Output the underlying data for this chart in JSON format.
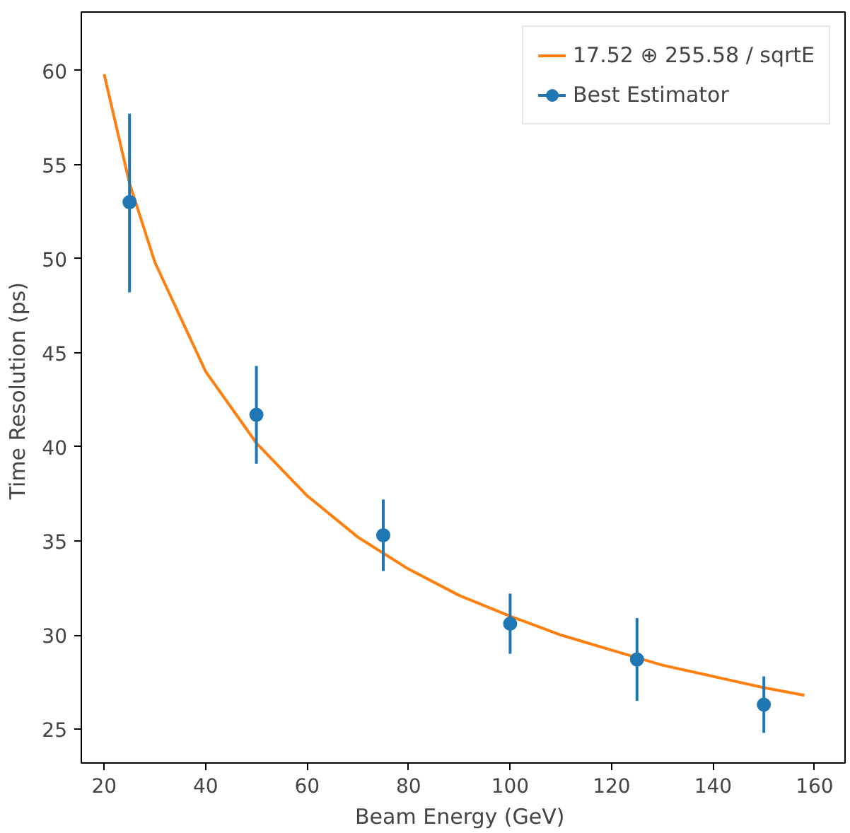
{
  "chart_data": {
    "type": "scatter",
    "xlabel": "Beam Energy  (GeV)",
    "ylabel": "Time Resolution  (ps)",
    "xlim": [
      15.5,
      166
    ],
    "ylim": [
      23.2,
      63.1
    ],
    "xticks": [
      20,
      40,
      60,
      80,
      100,
      120,
      140,
      160
    ],
    "yticks": [
      25,
      30,
      35,
      40,
      45,
      50,
      55,
      60
    ],
    "grid": false,
    "legend": "top right",
    "series": [
      {
        "name": "17.52 ⊕ 255.58 / sqrtE",
        "type": "line",
        "color": "#ff7f0e",
        "line_style": "solid",
        "x": [
          20,
          25,
          30,
          40,
          50,
          60,
          70,
          80,
          90,
          100,
          110,
          120,
          130,
          140,
          150,
          158
        ],
        "values": [
          59.8,
          54.0,
          49.8,
          44.0,
          40.2,
          37.4,
          35.2,
          33.5,
          32.1,
          31.0,
          30.0,
          29.2,
          28.4,
          27.8,
          27.2,
          26.8
        ]
      },
      {
        "name": "Best Estimator",
        "color": "#1f77b4",
        "marker": "circle",
        "x": [
          25,
          50,
          75,
          100,
          125,
          150
        ],
        "values": [
          53.0,
          41.7,
          35.3,
          30.6,
          28.7,
          26.3
        ],
        "errors": [
          [
            48.2,
            57.7
          ],
          [
            39.1,
            44.3
          ],
          [
            33.4,
            37.2
          ],
          [
            29.0,
            32.2
          ],
          [
            26.5,
            30.9
          ],
          [
            24.8,
            27.8
          ]
        ]
      }
    ]
  }
}
